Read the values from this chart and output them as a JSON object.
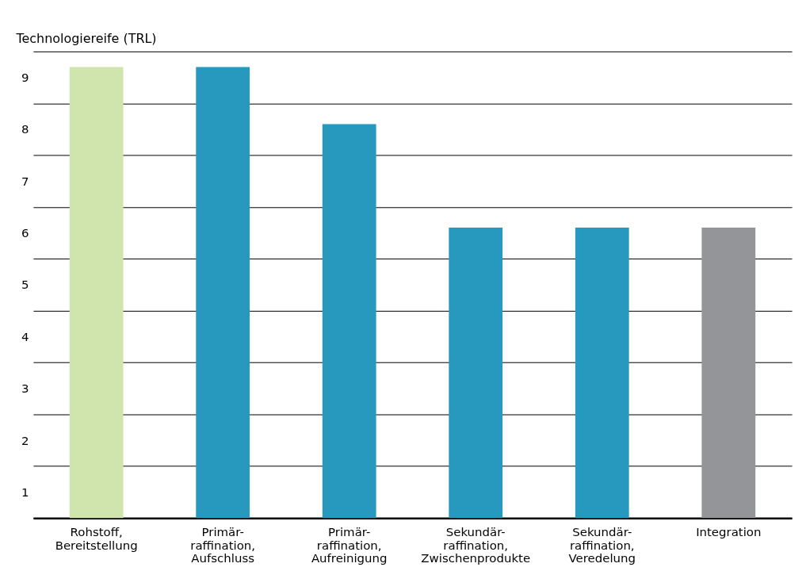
{
  "chart_data": {
    "type": "bar",
    "ylabel": "Technologiereife (TRL)",
    "categories": [
      "Rohstoff,\nBereitstellung",
      "Primär-\nraffination,\nAufschluss",
      "Primär-\nraffination,\nAufreinigung",
      "Sekundär-\nraffination,\nZwischenprodukte",
      "Sekundär-\nraffination,\nVeredelung",
      "Integration"
    ],
    "values": [
      8.7,
      8.7,
      7.6,
      5.6,
      5.6,
      5.6
    ],
    "colors": [
      "#cfe5ad",
      "#2799bf",
      "#2799bf",
      "#2799bf",
      "#2799bf",
      "#939598"
    ],
    "ylim": [
      0,
      9
    ],
    "yticks": [
      {
        "value": 0,
        "label": null
      },
      {
        "value": 0.5,
        "label": "1"
      },
      {
        "value": 1,
        "label": null
      },
      {
        "value": 1.5,
        "label": "2"
      },
      {
        "value": 2,
        "label": null
      },
      {
        "value": 2.5,
        "label": "3"
      },
      {
        "value": 3,
        "label": null
      },
      {
        "value": 3.5,
        "label": "4"
      },
      {
        "value": 4,
        "label": null
      },
      {
        "value": 4.5,
        "label": "5"
      },
      {
        "value": 5,
        "label": null
      },
      {
        "value": 5.5,
        "label": "6"
      },
      {
        "value": 6,
        "label": null
      },
      {
        "value": 6.5,
        "label": "7"
      },
      {
        "value": 7,
        "label": null
      },
      {
        "value": 7.5,
        "label": "8"
      },
      {
        "value": 8,
        "label": null
      },
      {
        "value": 8.5,
        "label": "9"
      },
      {
        "value": 9,
        "label": null
      }
    ],
    "grid": "y"
  }
}
